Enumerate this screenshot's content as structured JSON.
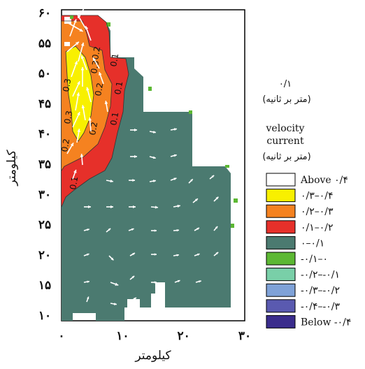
{
  "chart_data": {
    "type": "heatmap",
    "subtype": "filled-contour-with-vector-field",
    "xlabel": "کیلومتر",
    "ylabel": "کیلومتر",
    "xlim": [
      0,
      30
    ],
    "ylim": [
      9,
      60
    ],
    "x_ticks": [
      "۰",
      "۱۰",
      "۲۰",
      "۳۰"
    ],
    "y_ticks": [
      "۱۰",
      "۱۵",
      "۲۰",
      "۲۵",
      "۳۰",
      "۳۵",
      "۴۰",
      "۴۵",
      "۵۰",
      "۵۵",
      "۶۰"
    ],
    "contour_labels": [
      "0.3",
      "0.3",
      "0.3",
      "0.2",
      "0.2",
      "0.2",
      "0.2",
      "0.1",
      "0.1",
      "0.1",
      "0.1"
    ],
    "reference_vector": {
      "value": "۰/۱",
      "unit": "(متر بر ثانیه)"
    },
    "legend": {
      "title_line1": "velocity",
      "title_line2": "current",
      "title_unit": "(متر بر ثانیه)",
      "entries": [
        {
          "label": "Above  ۰/۴",
          "color": "#ffffff"
        },
        {
          "label": "۰/۳–۰/۴",
          "color": "#f8f000"
        },
        {
          "label": "۰/۲–۰/۳",
          "color": "#f58220"
        },
        {
          "label": "۰/۱–۰/۲",
          "color": "#e6302a"
        },
        {
          "label": "۰–۰/۱",
          "color": "#4b7a70"
        },
        {
          "label": "-۰/۱–۰",
          "color": "#5cb833"
        },
        {
          "label": "-۰/۲–-۰/۱",
          "color": "#79cfa8"
        },
        {
          "label": "-۰/۳–-۰/۲",
          "color": "#7fa2d8"
        },
        {
          "label": "-۰/۴–-۰/۳",
          "color": "#5a5ab0"
        },
        {
          "label": "Below  -۰/۴",
          "color": "#3a2c8c"
        }
      ]
    }
  }
}
